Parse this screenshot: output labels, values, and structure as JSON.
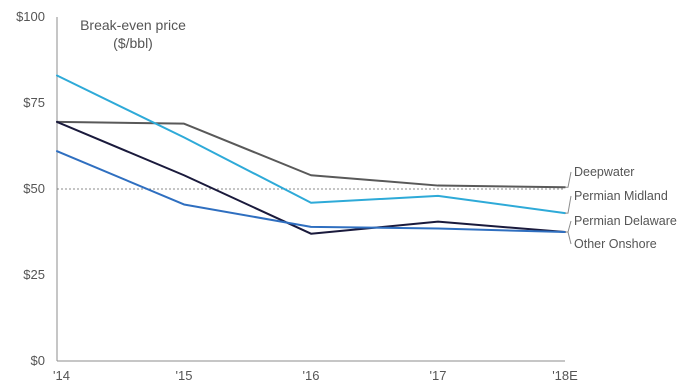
{
  "chart_data": {
    "type": "line",
    "title": "Break-even price",
    "subtitle": "($/bbl)",
    "categories": [
      "'14",
      "'15",
      "'16",
      "'17",
      "'18E"
    ],
    "ylim": [
      0,
      100
    ],
    "yticks": [
      0,
      25,
      50,
      75,
      100
    ],
    "ytick_labels": [
      "$0",
      "$25",
      "$50",
      "$75",
      "$100"
    ],
    "reference_line": 50,
    "grid": false,
    "legend_placement": "right",
    "series": [
      {
        "name": "Deepwater",
        "color": "#595959",
        "values": [
          69.5,
          69,
          54,
          51,
          50.5
        ]
      },
      {
        "name": "Permian Midland",
        "color": "#2eaad8",
        "values": [
          83,
          65,
          46,
          48,
          43
        ]
      },
      {
        "name": "Permian Delaware",
        "color": "#1a1a3c",
        "values": [
          69.5,
          54,
          37,
          40.5,
          37.5
        ]
      },
      {
        "name": "Other Onshore",
        "color": "#2f6fc0",
        "values": [
          61,
          45.5,
          39,
          38.5,
          37.5
        ]
      }
    ]
  }
}
